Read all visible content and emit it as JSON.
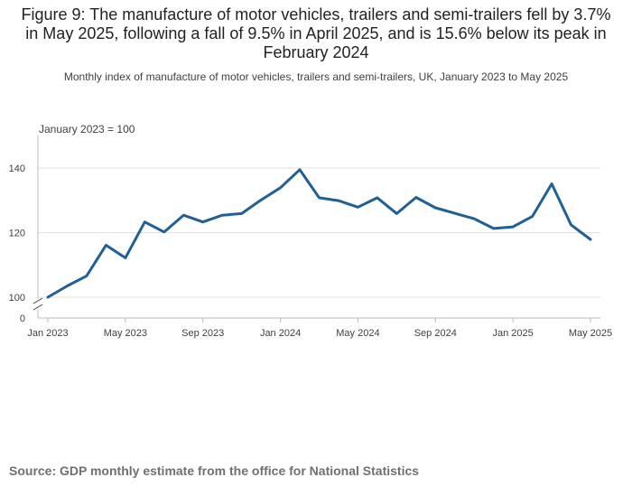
{
  "title": "Figure 9: The manufacture of motor vehicles, trailers and semi-trailers fell by 3.7% in May 2025, following a fall of 9.5% in April 2025, and is 15.6% below its peak in February 2024",
  "subtitle": "Monthly index of manufacture of motor vehicles, trailers and semi-trailers, UK, January 2023 to May 2025",
  "source": "Source: GDP monthly estimate from the office for National Statistics",
  "chart_data": {
    "type": "line",
    "ylabel": "January 2023 = 100",
    "y_ticks": [
      0,
      100,
      120,
      140
    ],
    "y_axis_break": true,
    "ylim_display": [
      100,
      140
    ],
    "grid": true,
    "line_color": "#206095",
    "x_tick_labels": [
      "Jan 2023",
      "May 2023",
      "Sep 2023",
      "Jan 2024",
      "May 2024",
      "Sep 2024",
      "Jan 2025",
      "May 2025"
    ],
    "x_tick_positions": [
      "2023-01",
      "2023-05",
      "2023-09",
      "2024-01",
      "2024-05",
      "2024-09",
      "2025-01",
      "2025-05"
    ],
    "x": [
      "2023-01",
      "2023-02",
      "2023-03",
      "2023-04",
      "2023-05",
      "2023-06",
      "2023-07",
      "2023-08",
      "2023-09",
      "2023-10",
      "2023-11",
      "2023-12",
      "2024-01",
      "2024-02",
      "2024-03",
      "2024-04",
      "2024-05",
      "2024-06",
      "2024-07",
      "2024-08",
      "2024-09",
      "2024-10",
      "2024-11",
      "2024-12",
      "2025-01",
      "2025-02",
      "2025-03",
      "2025-04",
      "2025-05"
    ],
    "series": [
      {
        "values": [
          100.0,
          103.5,
          106.6,
          116.1,
          112.2,
          123.3,
          120.2,
          125.4,
          123.3,
          125.4,
          125.9,
          130.1,
          133.9,
          139.5,
          130.8,
          129.9,
          127.9,
          130.8,
          125.9,
          130.9,
          127.7,
          126.0,
          124.3,
          121.3,
          121.8,
          125.0,
          135.1,
          122.4,
          117.9
        ]
      }
    ]
  }
}
